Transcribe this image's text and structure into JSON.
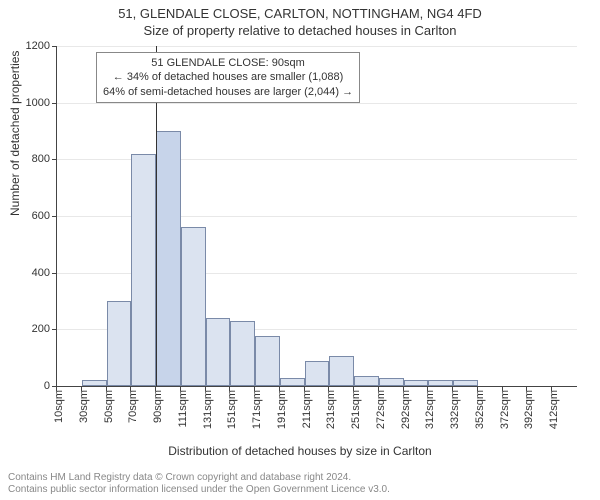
{
  "title_line1": "51, GLENDALE CLOSE, CARLTON, NOTTINGHAM, NG4 4FD",
  "title_line2": "Size of property relative to detached houses in Carlton",
  "ylabel": "Number of detached properties",
  "xlabel": "Distribution of detached houses by size in Carlton",
  "chart": {
    "type": "histogram",
    "background_color": "#ffffff",
    "grid_color": "#e8e8e8",
    "axis_color": "#444444",
    "bar_fill": "#dbe3f0",
    "bar_fill_highlight": "#c7d4ea",
    "bar_border": "#7a8aa8",
    "label_fontsize": 12,
    "tick_fontsize": 11,
    "title_fontsize": 13,
    "ylim": [
      0,
      1200
    ],
    "ytick_step": 200,
    "yticks": [
      0,
      200,
      400,
      600,
      800,
      1000,
      1200
    ],
    "x_categories": [
      "10sqm",
      "30sqm",
      "50sqm",
      "70sqm",
      "90sqm",
      "111sqm",
      "131sqm",
      "151sqm",
      "171sqm",
      "191sqm",
      "211sqm",
      "231sqm",
      "251sqm",
      "272sqm",
      "292sqm",
      "312sqm",
      "332sqm",
      "352sqm",
      "372sqm",
      "392sqm",
      "412sqm"
    ],
    "values": [
      0,
      20,
      300,
      820,
      900,
      560,
      240,
      230,
      175,
      30,
      90,
      105,
      35,
      30,
      20,
      20,
      20,
      0,
      0,
      0,
      0
    ],
    "highlight_index": 4,
    "reference_line_x_index": 4
  },
  "annotation": {
    "line1": "51 GLENDALE CLOSE: 90sqm",
    "line2": "← 34% of detached houses are smaller (1,088)",
    "line3": "64% of semi-detached houses are larger (2,044) →",
    "border_color": "#888888",
    "bg_color": "#ffffff",
    "fontsize": 11
  },
  "footer_line1": "Contains HM Land Registry data © Crown copyright and database right 2024.",
  "footer_line2": "Contains public sector information licensed under the Open Government Licence v3.0."
}
